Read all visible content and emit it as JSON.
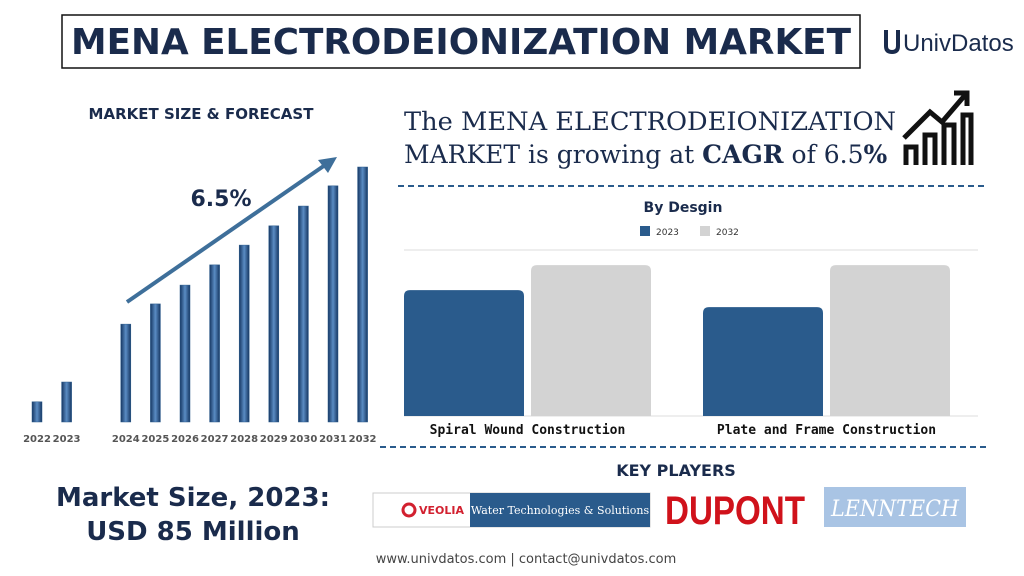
{
  "header": {
    "title": "MENA ELECTRODEIONIZATION MARKET",
    "logo": "UnivDatos"
  },
  "headline": {
    "line1": "The MENA ELECTRODEIONIZATION",
    "line2": [
      "MARKET is growing at ",
      "CAGR",
      " of 6.5",
      "%"
    ]
  },
  "chart_data": [
    {
      "type": "bar",
      "title": "MARKET SIZE & FORECAST",
      "annotation": "6.5%",
      "color": "#2a5b8c",
      "categories": [
        "2022",
        "2023",
        "2024",
        "2025",
        "2026",
        "2027",
        "2028",
        "2029",
        "2030",
        "2031",
        "2032"
      ],
      "values": [
        43,
        85,
        208,
        251,
        291,
        334,
        376,
        417,
        459,
        502,
        542
      ]
    },
    {
      "type": "bar",
      "title": "By Desgin",
      "grid": true,
      "categories": [
        "Spiral Wound Construction",
        "Plate and Frame Construction"
      ],
      "series": [
        {
          "name": "2023",
          "color": "#2a5b8c",
          "values": [
            126,
            109
          ]
        },
        {
          "name": "2032",
          "color": "#d3d3d3",
          "values": [
            151,
            151
          ]
        }
      ]
    }
  ],
  "market_size": {
    "line1": "Market Size, 2023:",
    "line2": "USD 85 Million"
  },
  "key_players": {
    "title": "KEY PLAYERS",
    "veolia": "VEOLIA",
    "veolia_tagline": "Water Technologies & Solutions",
    "dupont": "DUPONT",
    "lenntech": "LENNTECH"
  },
  "footer": "www.univdatos.com | contact@univdatos.com"
}
